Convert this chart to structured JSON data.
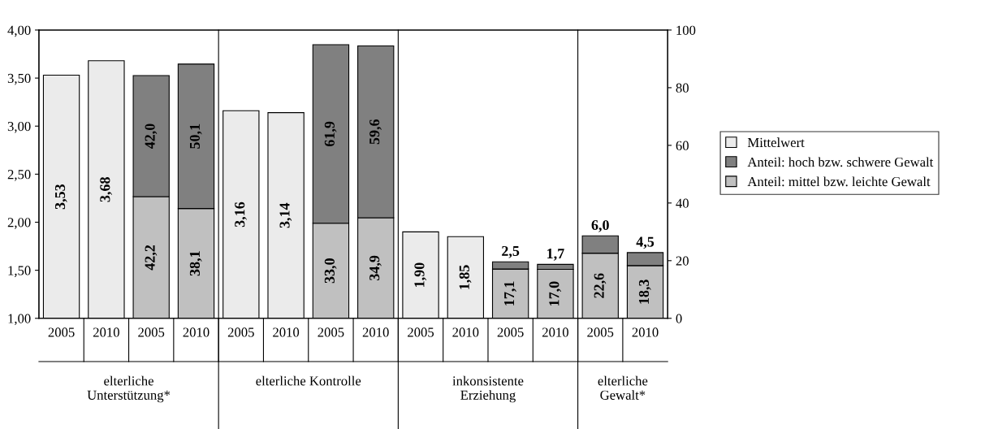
{
  "chart_data": {
    "type": "bar",
    "stacked": true,
    "categories": [
      "2005",
      "2010",
      "2005",
      "2010",
      "2005",
      "2010",
      "2005",
      "2010",
      "2005",
      "2010",
      "2005",
      "2010",
      "2005",
      "2010"
    ],
    "series": [
      {
        "name": "Mittelwert",
        "color": "#ebebeb",
        "axis": "y",
        "values": [
          3.53,
          3.68,
          null,
          null,
          3.16,
          3.14,
          null,
          null,
          1.9,
          1.85,
          null,
          null,
          null,
          null
        ],
        "value_labels": [
          "3,53",
          "3,68",
          null,
          null,
          "3,16",
          "3,14",
          null,
          null,
          "1,90",
          "1,85",
          null,
          null,
          null,
          null
        ]
      },
      {
        "name": "Anteil: mittel bzw. leichte Gewalt",
        "color": "#c0c0c0",
        "axis": "y2",
        "values": [
          null,
          null,
          42.2,
          38.1,
          null,
          null,
          33.0,
          34.9,
          null,
          null,
          17.1,
          17.0,
          22.6,
          18.3
        ],
        "value_labels": [
          null,
          null,
          "42,2",
          "38,1",
          null,
          null,
          "33,0",
          "34,9",
          null,
          null,
          "17,1",
          "17,0",
          "22,6",
          "18,3"
        ]
      },
      {
        "name": "Anteil: hoch bzw. schwere Gewalt",
        "color": "#808080",
        "axis": "y2",
        "values": [
          null,
          null,
          42.0,
          50.1,
          null,
          null,
          61.9,
          59.6,
          null,
          null,
          2.5,
          1.7,
          6.0,
          4.5
        ],
        "value_labels": [
          null,
          null,
          "42,0",
          "50,1",
          null,
          null,
          "61,9",
          "59,6",
          null,
          null,
          "2,5",
          "1,7",
          "6,0",
          "4,5"
        ]
      }
    ],
    "ylim": [
      1,
      4
    ],
    "yticks": [
      {
        "value": 1,
        "label": "1,00"
      },
      {
        "value": 1.5,
        "label": "1,50"
      },
      {
        "value": 2,
        "label": "2,00"
      },
      {
        "value": 2.5,
        "label": "2,50"
      },
      {
        "value": 3,
        "label": "3,00"
      },
      {
        "value": 3.5,
        "label": "3,50"
      },
      {
        "value": 4,
        "label": "4,00"
      }
    ],
    "y2lim": [
      0,
      100
    ],
    "y2ticks": [
      0,
      20,
      40,
      60,
      80,
      100
    ],
    "annotations": [
      "elterliche\nUnterstützung*",
      "elterliche Kontrolle",
      "inkonsistente\nErziehung",
      "elterliche\nGewalt*"
    ],
    "legend": "right",
    "grid": false
  }
}
